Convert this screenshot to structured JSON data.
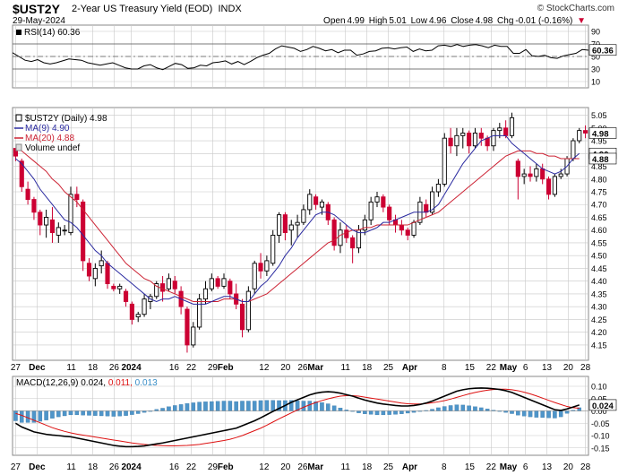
{
  "header": {
    "symbol": "$UST2Y",
    "description": "2-Year US Treasury Yield (EOD)",
    "exchange": "INDX",
    "date": "29-May-2024",
    "logo": "© StockCharts.com",
    "quote": {
      "open_label": "Open",
      "open": "4.99",
      "high_label": "High",
      "high": "5.01",
      "low_label": "Low",
      "low": "4.96",
      "close_label": "Close",
      "close": "4.98",
      "chg_label": "Chg",
      "chg": "-0.01 (-0.16%)",
      "down_marker": "▼"
    }
  },
  "colors": {
    "up": "#000000",
    "down": "#cc0033",
    "ma9": "#2a2aa0",
    "ma20": "#cc2233",
    "macd_line": "#000000",
    "signal_line": "#dd1111",
    "histogram": "#4f95c9",
    "grid": "#c8c8c8"
  },
  "x_axis": {
    "labels": [
      "27",
      "Dec",
      "11",
      "18",
      "26",
      "2024",
      "16",
      "22",
      "29",
      "Feb",
      "12",
      "20",
      "26",
      "Mar",
      "11",
      "18",
      "25",
      "Apr",
      "8",
      "15",
      "22",
      "May",
      "6",
      "13",
      "20",
      "28"
    ],
    "bold_labels": [
      "Dec",
      "2024",
      "Feb",
      "Mar",
      "Apr",
      "May"
    ]
  },
  "chart_data": [
    {
      "type": "line",
      "title": "RSI(14) 60.36",
      "legend": [
        "RSI(14) 60.36"
      ],
      "ylim": [
        0,
        100
      ],
      "y_ticks": [
        "10",
        "30",
        "50",
        "70",
        "90"
      ],
      "reference_lines": [
        30,
        50,
        70
      ],
      "current_value_label": "60.36",
      "values": [
        56,
        50,
        44,
        42,
        45,
        40,
        38,
        40,
        43,
        46,
        45,
        44,
        40,
        38,
        36,
        38,
        40,
        36,
        32,
        30,
        30,
        35,
        37,
        32,
        29,
        34,
        39,
        37,
        31,
        32,
        36,
        35,
        40,
        41,
        43,
        38,
        42,
        37,
        42,
        48,
        52,
        55,
        62,
        67,
        65,
        63,
        58,
        61,
        66,
        63,
        59,
        61,
        56,
        60,
        60,
        52,
        54,
        58,
        59,
        63,
        64,
        62,
        64,
        65,
        58,
        62,
        59,
        60,
        67,
        68,
        66,
        69,
        66,
        68,
        69,
        67,
        64,
        68,
        66,
        66,
        55,
        55,
        61,
        51,
        50,
        52,
        48,
        47,
        51,
        53,
        55,
        61,
        60
      ]
    },
    {
      "type": "candlestick",
      "title": "$UST2Y (Daily) 4.98",
      "legend": [
        "$UST2Y (Daily) 4.98",
        "MA(9) 4.90",
        "MA(20) 4.88",
        "Volume undef"
      ],
      "ylim": [
        4.09,
        5.08
      ],
      "y_ticks": [
        "4.15",
        "4.20",
        "4.25",
        "4.30",
        "4.35",
        "4.40",
        "4.45",
        "4.50",
        "4.55",
        "4.60",
        "4.65",
        "4.70",
        "4.75",
        "4.80",
        "4.85",
        "4.90",
        "4.95",
        "5.00",
        "5.05"
      ],
      "price_labels": {
        "close": "4.98",
        "ma9": "4.90",
        "ma20": "4.88"
      },
      "ohlc": [
        [
          4.92,
          4.92,
          4.87,
          4.89
        ],
        [
          4.87,
          4.88,
          4.75,
          4.77
        ],
        [
          4.76,
          4.79,
          4.7,
          4.72
        ],
        [
          4.72,
          4.73,
          4.64,
          4.67
        ],
        [
          4.67,
          4.68,
          4.58,
          4.62
        ],
        [
          4.62,
          4.68,
          4.57,
          4.65
        ],
        [
          4.64,
          4.69,
          4.55,
          4.59
        ],
        [
          4.58,
          4.63,
          4.55,
          4.61
        ],
        [
          4.6,
          4.62,
          4.58,
          4.6
        ],
        [
          4.59,
          4.77,
          4.58,
          4.74
        ],
        [
          4.74,
          4.77,
          4.69,
          4.72
        ],
        [
          4.71,
          4.72,
          4.44,
          4.48
        ],
        [
          4.47,
          4.49,
          4.4,
          4.42
        ],
        [
          4.41,
          4.47,
          4.38,
          4.45
        ],
        [
          4.46,
          4.52,
          4.43,
          4.48
        ],
        [
          4.47,
          4.48,
          4.37,
          4.39
        ],
        [
          4.38,
          4.39,
          4.36,
          4.37
        ],
        [
          4.37,
          4.39,
          4.35,
          4.38
        ],
        [
          4.36,
          4.37,
          4.3,
          4.32
        ],
        [
          4.31,
          4.32,
          4.23,
          4.25
        ],
        [
          4.26,
          4.28,
          4.24,
          4.27
        ],
        [
          4.27,
          4.35,
          4.26,
          4.33
        ],
        [
          4.32,
          4.35,
          4.29,
          4.34
        ],
        [
          4.34,
          4.4,
          4.33,
          4.39
        ],
        [
          4.39,
          4.42,
          4.32,
          4.36
        ],
        [
          4.37,
          4.43,
          4.36,
          4.41
        ],
        [
          4.4,
          4.42,
          4.35,
          4.37
        ],
        [
          4.36,
          4.38,
          4.27,
          4.3
        ],
        [
          4.29,
          4.3,
          4.12,
          4.15
        ],
        [
          4.15,
          4.24,
          4.14,
          4.22
        ],
        [
          4.22,
          4.35,
          4.21,
          4.33
        ],
        [
          4.33,
          4.4,
          4.31,
          4.37
        ],
        [
          4.37,
          4.43,
          4.36,
          4.41
        ],
        [
          4.41,
          4.42,
          4.37,
          4.38
        ],
        [
          4.38,
          4.43,
          4.37,
          4.41
        ],
        [
          4.4,
          4.41,
          4.33,
          4.35
        ],
        [
          4.35,
          4.39,
          4.29,
          4.31
        ],
        [
          4.31,
          4.33,
          4.18,
          4.21
        ],
        [
          4.21,
          4.38,
          4.2,
          4.36
        ],
        [
          4.37,
          4.48,
          4.35,
          4.47
        ],
        [
          4.47,
          4.51,
          4.41,
          4.44
        ],
        [
          4.44,
          4.5,
          4.42,
          4.48
        ],
        [
          4.47,
          4.6,
          4.46,
          4.58
        ],
        [
          4.58,
          4.67,
          4.55,
          4.66
        ],
        [
          4.66,
          4.67,
          4.56,
          4.59
        ],
        [
          4.6,
          4.64,
          4.54,
          4.62
        ],
        [
          4.62,
          4.66,
          4.57,
          4.63
        ],
        [
          4.63,
          4.7,
          4.62,
          4.68
        ],
        [
          4.68,
          4.76,
          4.66,
          4.74
        ],
        [
          4.73,
          4.74,
          4.68,
          4.7
        ],
        [
          4.69,
          4.72,
          4.66,
          4.71
        ],
        [
          4.7,
          4.71,
          4.62,
          4.64
        ],
        [
          4.64,
          4.65,
          4.52,
          4.54
        ],
        [
          4.54,
          4.63,
          4.51,
          4.6
        ],
        [
          4.6,
          4.62,
          4.55,
          4.57
        ],
        [
          4.57,
          4.58,
          4.47,
          4.53
        ],
        [
          4.53,
          4.62,
          4.51,
          4.6
        ],
        [
          4.6,
          4.66,
          4.58,
          4.64
        ],
        [
          4.64,
          4.73,
          4.62,
          4.71
        ],
        [
          4.71,
          4.75,
          4.69,
          4.73
        ],
        [
          4.73,
          4.74,
          4.67,
          4.69
        ],
        [
          4.69,
          4.7,
          4.62,
          4.64
        ],
        [
          4.64,
          4.66,
          4.59,
          4.62
        ],
        [
          4.62,
          4.64,
          4.58,
          4.6
        ],
        [
          4.6,
          4.61,
          4.56,
          4.58
        ],
        [
          4.58,
          4.64,
          4.57,
          4.63
        ],
        [
          4.63,
          4.73,
          4.62,
          4.71
        ],
        [
          4.7,
          4.72,
          4.65,
          4.67
        ],
        [
          4.67,
          4.77,
          4.66,
          4.75
        ],
        [
          4.75,
          4.8,
          4.73,
          4.78
        ],
        [
          4.78,
          4.98,
          4.77,
          4.96
        ],
        [
          4.96,
          5.0,
          4.9,
          4.93
        ],
        [
          4.93,
          5.0,
          4.89,
          4.97
        ],
        [
          4.97,
          5.0,
          4.92,
          4.98
        ],
        [
          4.98,
          4.99,
          4.9,
          4.93
        ],
        [
          4.93,
          5.0,
          4.92,
          4.98
        ],
        [
          4.98,
          5.0,
          4.93,
          4.96
        ],
        [
          4.96,
          4.97,
          4.91,
          4.93
        ],
        [
          4.93,
          5.0,
          4.91,
          4.99
        ],
        [
          4.99,
          5.02,
          4.96,
          5.0
        ],
        [
          5.0,
          5.03,
          4.96,
          4.97
        ],
        [
          4.97,
          5.06,
          4.96,
          5.04
        ],
        [
          4.87,
          4.88,
          4.72,
          4.81
        ],
        [
          4.81,
          4.84,
          4.78,
          4.82
        ],
        [
          4.82,
          4.85,
          4.79,
          4.81
        ],
        [
          4.81,
          4.86,
          4.79,
          4.84
        ],
        [
          4.84,
          4.86,
          4.78,
          4.8
        ],
        [
          4.8,
          4.81,
          4.72,
          4.74
        ],
        [
          4.74,
          4.82,
          4.73,
          4.81
        ],
        [
          4.81,
          4.84,
          4.8,
          4.82
        ],
        [
          4.82,
          4.89,
          4.81,
          4.88
        ],
        [
          4.88,
          4.96,
          4.87,
          4.95
        ],
        [
          4.95,
          5.0,
          4.94,
          4.99
        ],
        [
          4.99,
          5.01,
          4.96,
          4.98
        ]
      ],
      "series": [
        {
          "name": "MA(9) 4.90",
          "values": [
            4.88,
            4.86,
            4.83,
            4.8,
            4.76,
            4.73,
            4.7,
            4.67,
            4.64,
            4.63,
            4.61,
            4.58,
            4.55,
            4.52,
            4.5,
            4.47,
            4.45,
            4.43,
            4.41,
            4.39,
            4.37,
            4.35,
            4.33,
            4.32,
            4.33,
            4.33,
            4.34,
            4.33,
            4.32,
            4.31,
            4.31,
            4.31,
            4.32,
            4.33,
            4.34,
            4.34,
            4.33,
            4.32,
            4.32,
            4.35,
            4.38,
            4.4,
            4.43,
            4.46,
            4.5,
            4.53,
            4.57,
            4.6,
            4.63,
            4.66,
            4.67,
            4.67,
            4.66,
            4.64,
            4.62,
            4.6,
            4.59,
            4.59,
            4.6,
            4.61,
            4.63,
            4.63,
            4.64,
            4.65,
            4.66,
            4.67,
            4.67,
            4.67,
            4.68,
            4.7,
            4.74,
            4.78,
            4.82,
            4.86,
            4.89,
            4.92,
            4.95,
            4.96,
            4.97,
            4.97,
            4.97,
            4.94,
            4.92,
            4.9,
            4.88,
            4.86,
            4.84,
            4.83,
            4.82,
            4.83,
            4.85,
            4.88,
            4.9
          ]
        },
        {
          "name": "MA(20) 4.88",
          "values": [
            4.92,
            4.91,
            4.89,
            4.87,
            4.85,
            4.83,
            4.8,
            4.78,
            4.75,
            4.73,
            4.71,
            4.68,
            4.65,
            4.62,
            4.59,
            4.56,
            4.53,
            4.5,
            4.47,
            4.45,
            4.43,
            4.41,
            4.4,
            4.38,
            4.37,
            4.36,
            4.35,
            4.34,
            4.33,
            4.32,
            4.32,
            4.32,
            4.32,
            4.32,
            4.33,
            4.33,
            4.33,
            4.32,
            4.32,
            4.33,
            4.34,
            4.35,
            4.37,
            4.39,
            4.41,
            4.43,
            4.45,
            4.47,
            4.49,
            4.51,
            4.53,
            4.55,
            4.56,
            4.58,
            4.59,
            4.6,
            4.6,
            4.61,
            4.61,
            4.62,
            4.62,
            4.62,
            4.62,
            4.62,
            4.62,
            4.63,
            4.64,
            4.65,
            4.66,
            4.67,
            4.69,
            4.71,
            4.73,
            4.75,
            4.77,
            4.79,
            4.81,
            4.83,
            4.85,
            4.87,
            4.89,
            4.9,
            4.91,
            4.91,
            4.91,
            4.9,
            4.9,
            4.89,
            4.89,
            4.88,
            4.88,
            4.88,
            4.88
          ]
        }
      ]
    },
    {
      "type": "line",
      "title": "MACD(12,26,9) 0.024, 0.011, 0.013",
      "legend": [
        "MACD(12,26,9) 0.024,",
        "0.011,",
        "0.013"
      ],
      "ylim": [
        -0.18,
        0.14
      ],
      "y_ticks": [
        "-0.15",
        "-0.10",
        "-0.05",
        "0.00",
        "0.05",
        "0.10"
      ],
      "price_labels": {
        "macd": "0.024"
      },
      "series": [
        {
          "name": "MACD",
          "values": [
            -0.05,
            -0.065,
            -0.075,
            -0.085,
            -0.09,
            -0.095,
            -0.098,
            -0.1,
            -0.103,
            -0.105,
            -0.11,
            -0.115,
            -0.12,
            -0.125,
            -0.13,
            -0.135,
            -0.14,
            -0.143,
            -0.145,
            -0.145,
            -0.144,
            -0.142,
            -0.138,
            -0.134,
            -0.13,
            -0.125,
            -0.12,
            -0.115,
            -0.11,
            -0.105,
            -0.1,
            -0.095,
            -0.09,
            -0.085,
            -0.08,
            -0.075,
            -0.07,
            -0.06,
            -0.05,
            -0.04,
            -0.028,
            -0.015,
            -0.002,
            0.01,
            0.022,
            0.035,
            0.045,
            0.055,
            0.065,
            0.072,
            0.076,
            0.078,
            0.076,
            0.072,
            0.066,
            0.06,
            0.052,
            0.044,
            0.038,
            0.032,
            0.028,
            0.025,
            0.022,
            0.02,
            0.02,
            0.022,
            0.026,
            0.032,
            0.04,
            0.05,
            0.06,
            0.07,
            0.08,
            0.086,
            0.09,
            0.092,
            0.093,
            0.092,
            0.09,
            0.087,
            0.082,
            0.075,
            0.065,
            0.055,
            0.045,
            0.035,
            0.025,
            0.015,
            0.005,
            0.002,
            0.008,
            0.016,
            0.024
          ]
        },
        {
          "name": "Signal",
          "values": [
            -0.01,
            -0.018,
            -0.028,
            -0.038,
            -0.048,
            -0.058,
            -0.068,
            -0.076,
            -0.083,
            -0.089,
            -0.094,
            -0.098,
            -0.102,
            -0.106,
            -0.11,
            -0.114,
            -0.118,
            -0.122,
            -0.126,
            -0.13,
            -0.133,
            -0.136,
            -0.138,
            -0.14,
            -0.141,
            -0.142,
            -0.142,
            -0.141,
            -0.14,
            -0.138,
            -0.136,
            -0.132,
            -0.128,
            -0.124,
            -0.12,
            -0.115,
            -0.108,
            -0.1,
            -0.09,
            -0.08,
            -0.07,
            -0.058,
            -0.045,
            -0.032,
            -0.02,
            -0.008,
            0.004,
            0.015,
            0.025,
            0.034,
            0.042,
            0.049,
            0.055,
            0.06,
            0.062,
            0.062,
            0.06,
            0.056,
            0.052,
            0.048,
            0.044,
            0.04,
            0.036,
            0.032,
            0.029,
            0.028,
            0.028,
            0.03,
            0.033,
            0.037,
            0.042,
            0.048,
            0.055,
            0.062,
            0.069,
            0.075,
            0.08,
            0.084,
            0.087,
            0.088,
            0.088,
            0.086,
            0.082,
            0.076,
            0.069,
            0.061,
            0.052,
            0.043,
            0.034,
            0.026,
            0.018,
            0.013,
            0.011
          ]
        }
      ]
    }
  ]
}
